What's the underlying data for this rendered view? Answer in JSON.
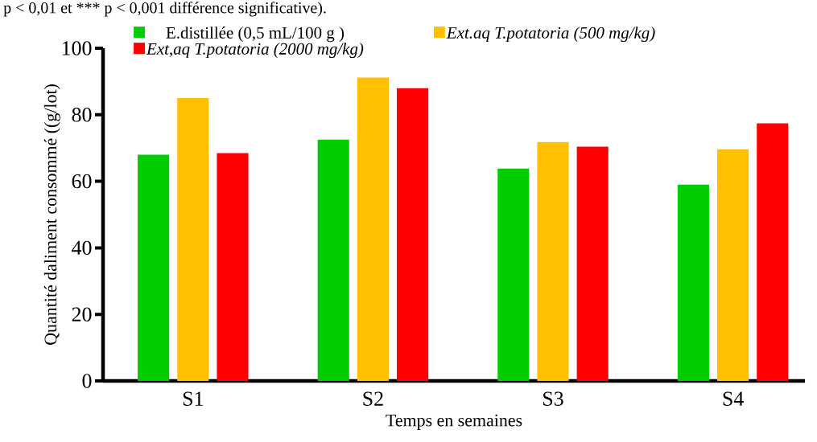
{
  "chart_data": {
    "type": "bar",
    "annotations": [
      "p < 0,01 et *** p < 0,001 différence significative)."
    ],
    "categories": [
      "S1",
      "S2",
      "S3",
      "S4"
    ],
    "xlabel": "Temps en semaines",
    "ylabel": "Quantité daliment consommé ((g/lot)",
    "ylim": [
      0,
      100
    ],
    "yticks": [
      0,
      20,
      40,
      60,
      80,
      100
    ],
    "legend": "top",
    "series": [
      {
        "name": "E.distillée (0,5 mL/100 g )",
        "color": "#00cc00",
        "values": [
          68,
          72.5,
          63.8,
          59
        ]
      },
      {
        "name": "*Ext.aq T.potatoria (500 mg/kg)*",
        "color": "#ffc000",
        "values": [
          85,
          91.2,
          71.8,
          69.6
        ]
      },
      {
        "name": "*Ext,aq T.potatoria (2000 mg/kg)*",
        "color": "#ff0000",
        "values": [
          68.5,
          88,
          70.4,
          77.4
        ]
      }
    ]
  }
}
